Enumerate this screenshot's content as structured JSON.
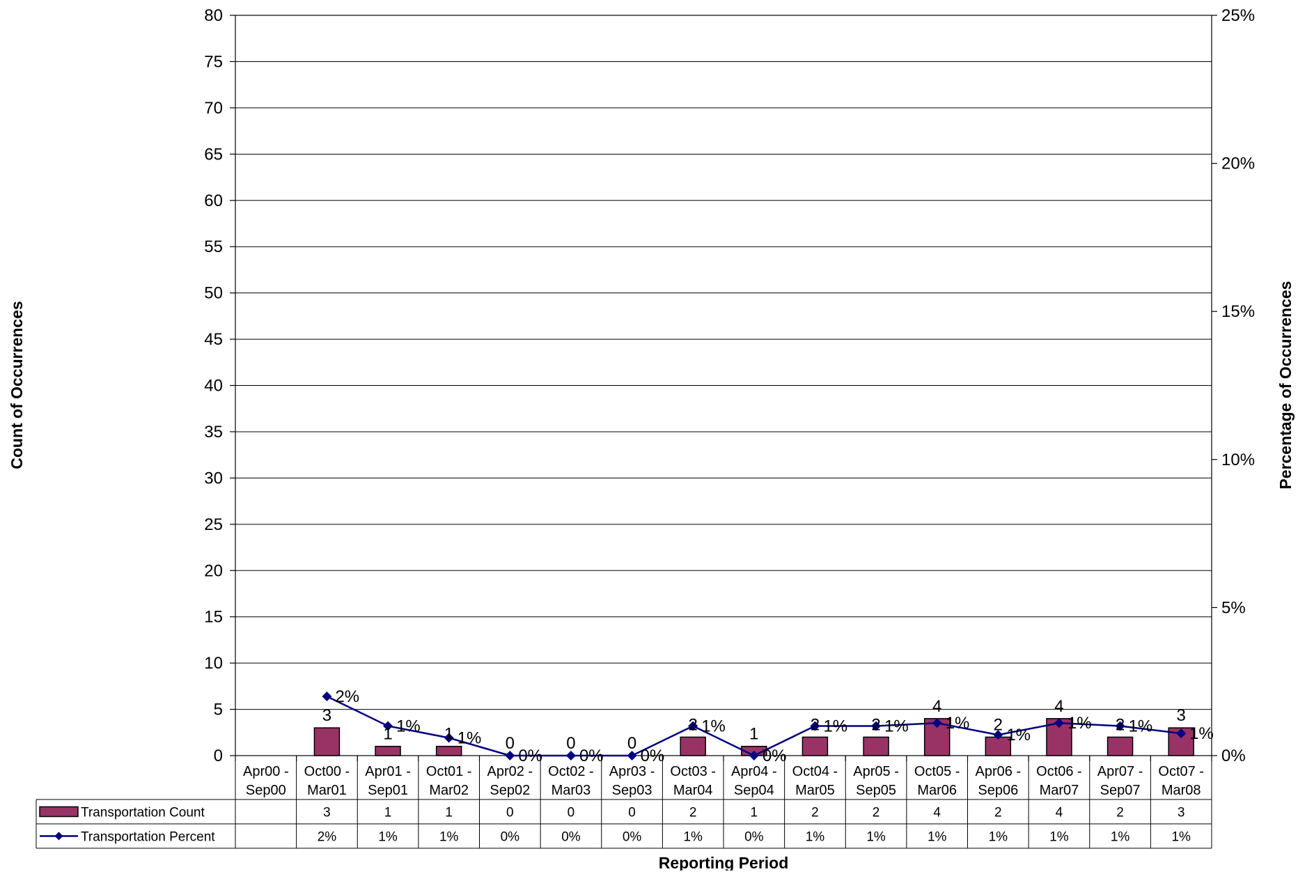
{
  "chart_data": {
    "type": "bar",
    "xlabel": "Reporting Period",
    "ylabel": "Count of Occurrences",
    "ylabel_right": "Percentage of Occurrences",
    "ylim": [
      0,
      80
    ],
    "y_ticks": [
      "0",
      "5",
      "10",
      "15",
      "20",
      "25",
      "30",
      "35",
      "40",
      "45",
      "50",
      "55",
      "60",
      "65",
      "70",
      "75",
      "80"
    ],
    "ylim_right": [
      0,
      25
    ],
    "y_right_ticks": [
      "0%",
      "5%",
      "10%",
      "15%",
      "20%",
      "25%"
    ],
    "grid": true,
    "legend": "data-table-left",
    "categories": [
      [
        "Apr00 -",
        "Sep00"
      ],
      [
        "Oct00 -",
        "Mar01"
      ],
      [
        "Apr01 -",
        "Sep01"
      ],
      [
        "Oct01 -",
        "Mar02"
      ],
      [
        "Apr02 -",
        "Sep02"
      ],
      [
        "Oct02 -",
        "Mar03"
      ],
      [
        "Apr03 -",
        "Sep03"
      ],
      [
        "Oct03 -",
        "Mar04"
      ],
      [
        "Apr04 -",
        "Sep04"
      ],
      [
        "Oct04 -",
        "Mar05"
      ],
      [
        "Apr05 -",
        "Sep05"
      ],
      [
        "Oct05 -",
        "Mar06"
      ],
      [
        "Apr06 -",
        "Sep06"
      ],
      [
        "Oct06 -",
        "Mar07"
      ],
      [
        "Apr07 -",
        "Sep07"
      ],
      [
        "Oct07 -",
        "Mar08"
      ]
    ],
    "series": [
      {
        "name": "Transportation Count",
        "type": "bar",
        "axis": "left",
        "color": "#993366",
        "values": [
          null,
          3,
          1,
          1,
          0,
          0,
          0,
          2,
          1,
          2,
          2,
          4,
          2,
          4,
          2,
          3
        ],
        "labels": [
          "",
          "3",
          "1",
          "1",
          "0",
          "0",
          "0",
          "2",
          "1",
          "2",
          "2",
          "4",
          "2",
          "4",
          "2",
          "3"
        ]
      },
      {
        "name": "Transportation Percent",
        "type": "line",
        "axis": "right",
        "color": "#000080",
        "values": [
          null,
          2.0,
          1.0,
          0.6,
          0,
          0,
          0,
          1.0,
          0,
          1.0,
          1.0,
          1.1,
          0.7,
          1.1,
          1.0,
          0.75
        ],
        "labels": [
          "",
          "2%",
          "1%",
          "1%",
          "0%",
          "0%",
          "0%",
          "1%",
          "0%",
          "1%",
          "1%",
          "1%",
          "1%",
          "1%",
          "1%",
          "1%"
        ]
      }
    ]
  }
}
